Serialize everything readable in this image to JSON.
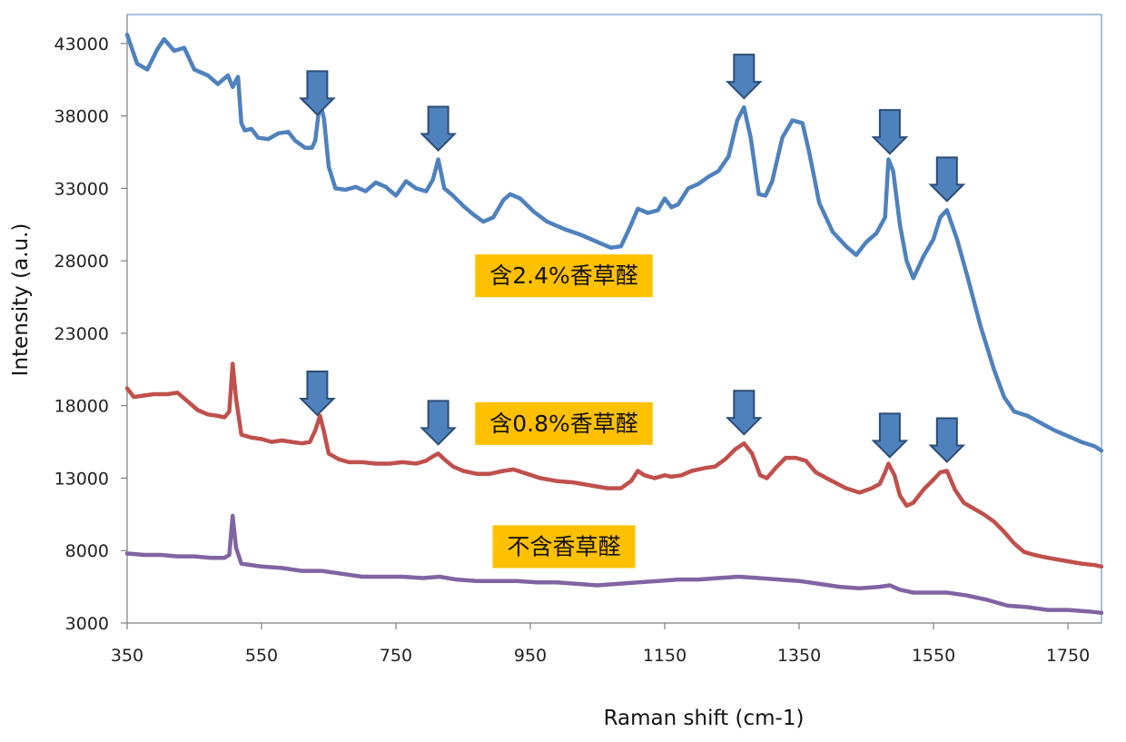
{
  "chart_data": {
    "type": "line",
    "title": "",
    "xlabel": "Raman shift (cm-1)",
    "ylabel": "Intensity (a.u.)",
    "xlim": [
      350,
      1800
    ],
    "ylim": [
      3000,
      45000
    ],
    "x_ticks": [
      350,
      550,
      750,
      950,
      1150,
      1350,
      1550,
      1750
    ],
    "y_ticks": [
      3000,
      8000,
      13000,
      18000,
      23000,
      28000,
      33000,
      38000,
      43000
    ],
    "grid": false,
    "legend": "none",
    "peak_arrows_x": [
      633,
      813,
      1268,
      1485,
      1570
    ],
    "series": [
      {
        "name": "含2.4%香草醛",
        "color": "#4f81bd",
        "points": [
          [
            350,
            43600
          ],
          [
            365,
            41600
          ],
          [
            380,
            41200
          ],
          [
            395,
            42600
          ],
          [
            405,
            43300
          ],
          [
            420,
            42500
          ],
          [
            435,
            42700
          ],
          [
            450,
            41200
          ],
          [
            470,
            40800
          ],
          [
            485,
            40200
          ],
          [
            500,
            40800
          ],
          [
            507,
            40000
          ],
          [
            515,
            40700
          ],
          [
            520,
            37500
          ],
          [
            525,
            37000
          ],
          [
            535,
            37100
          ],
          [
            545,
            36500
          ],
          [
            560,
            36400
          ],
          [
            575,
            36800
          ],
          [
            590,
            36900
          ],
          [
            600,
            36300
          ],
          [
            615,
            35800
          ],
          [
            625,
            35800
          ],
          [
            630,
            36300
          ],
          [
            637,
            39000
          ],
          [
            643,
            37800
          ],
          [
            650,
            34500
          ],
          [
            660,
            33000
          ],
          [
            675,
            32900
          ],
          [
            690,
            33100
          ],
          [
            705,
            32800
          ],
          [
            720,
            33400
          ],
          [
            735,
            33100
          ],
          [
            750,
            32500
          ],
          [
            765,
            33500
          ],
          [
            780,
            33000
          ],
          [
            795,
            32800
          ],
          [
            805,
            33600
          ],
          [
            813,
            35000
          ],
          [
            822,
            33000
          ],
          [
            835,
            32500
          ],
          [
            850,
            31800
          ],
          [
            865,
            31200
          ],
          [
            880,
            30700
          ],
          [
            895,
            31000
          ],
          [
            910,
            32200
          ],
          [
            920,
            32600
          ],
          [
            935,
            32300
          ],
          [
            955,
            31400
          ],
          [
            975,
            30700
          ],
          [
            1000,
            30200
          ],
          [
            1025,
            29800
          ],
          [
            1050,
            29300
          ],
          [
            1070,
            28900
          ],
          [
            1085,
            29000
          ],
          [
            1100,
            30500
          ],
          [
            1110,
            31600
          ],
          [
            1125,
            31300
          ],
          [
            1140,
            31500
          ],
          [
            1150,
            32300
          ],
          [
            1160,
            31700
          ],
          [
            1170,
            31900
          ],
          [
            1185,
            33000
          ],
          [
            1200,
            33300
          ],
          [
            1215,
            33800
          ],
          [
            1230,
            34200
          ],
          [
            1245,
            35200
          ],
          [
            1258,
            37700
          ],
          [
            1268,
            38600
          ],
          [
            1278,
            36500
          ],
          [
            1290,
            32600
          ],
          [
            1300,
            32500
          ],
          [
            1310,
            33500
          ],
          [
            1325,
            36500
          ],
          [
            1340,
            37700
          ],
          [
            1355,
            37500
          ],
          [
            1365,
            35500
          ],
          [
            1380,
            32000
          ],
          [
            1400,
            30000
          ],
          [
            1420,
            29000
          ],
          [
            1435,
            28400
          ],
          [
            1450,
            29300
          ],
          [
            1465,
            29900
          ],
          [
            1478,
            31000
          ],
          [
            1483,
            35000
          ],
          [
            1490,
            34200
          ],
          [
            1500,
            30500
          ],
          [
            1510,
            28000
          ],
          [
            1520,
            26800
          ],
          [
            1535,
            28300
          ],
          [
            1550,
            29500
          ],
          [
            1560,
            31000
          ],
          [
            1570,
            31500
          ],
          [
            1585,
            29500
          ],
          [
            1600,
            27000
          ],
          [
            1620,
            23500
          ],
          [
            1640,
            20500
          ],
          [
            1655,
            18600
          ],
          [
            1670,
            17600
          ],
          [
            1690,
            17300
          ],
          [
            1710,
            16800
          ],
          [
            1730,
            16300
          ],
          [
            1750,
            15900
          ],
          [
            1770,
            15500
          ],
          [
            1790,
            15200
          ],
          [
            1800,
            14900
          ]
        ]
      },
      {
        "name": "含0.8%香草醛",
        "color": "#c0504d",
        "points": [
          [
            350,
            19200
          ],
          [
            360,
            18600
          ],
          [
            375,
            18700
          ],
          [
            390,
            18800
          ],
          [
            410,
            18800
          ],
          [
            425,
            18900
          ],
          [
            440,
            18300
          ],
          [
            455,
            17700
          ],
          [
            470,
            17400
          ],
          [
            485,
            17300
          ],
          [
            495,
            17200
          ],
          [
            502,
            17600
          ],
          [
            507,
            20900
          ],
          [
            512,
            18500
          ],
          [
            520,
            16000
          ],
          [
            535,
            15800
          ],
          [
            550,
            15700
          ],
          [
            565,
            15500
          ],
          [
            580,
            15600
          ],
          [
            595,
            15500
          ],
          [
            610,
            15400
          ],
          [
            622,
            15500
          ],
          [
            630,
            16300
          ],
          [
            637,
            17300
          ],
          [
            643,
            16200
          ],
          [
            650,
            14700
          ],
          [
            665,
            14300
          ],
          [
            680,
            14100
          ],
          [
            700,
            14100
          ],
          [
            720,
            14000
          ],
          [
            740,
            14000
          ],
          [
            760,
            14100
          ],
          [
            780,
            14000
          ],
          [
            795,
            14200
          ],
          [
            805,
            14500
          ],
          [
            813,
            14700
          ],
          [
            822,
            14300
          ],
          [
            835,
            13800
          ],
          [
            850,
            13500
          ],
          [
            870,
            13300
          ],
          [
            890,
            13300
          ],
          [
            910,
            13500
          ],
          [
            925,
            13600
          ],
          [
            945,
            13300
          ],
          [
            965,
            13000
          ],
          [
            990,
            12800
          ],
          [
            1015,
            12700
          ],
          [
            1040,
            12500
          ],
          [
            1065,
            12300
          ],
          [
            1085,
            12300
          ],
          [
            1100,
            12800
          ],
          [
            1110,
            13500
          ],
          [
            1120,
            13200
          ],
          [
            1135,
            13000
          ],
          [
            1150,
            13200
          ],
          [
            1160,
            13100
          ],
          [
            1175,
            13200
          ],
          [
            1190,
            13500
          ],
          [
            1210,
            13700
          ],
          [
            1225,
            13800
          ],
          [
            1240,
            14300
          ],
          [
            1255,
            15000
          ],
          [
            1268,
            15400
          ],
          [
            1280,
            14700
          ],
          [
            1292,
            13200
          ],
          [
            1302,
            13000
          ],
          [
            1315,
            13700
          ],
          [
            1330,
            14400
          ],
          [
            1345,
            14400
          ],
          [
            1360,
            14200
          ],
          [
            1375,
            13400
          ],
          [
            1395,
            12900
          ],
          [
            1420,
            12300
          ],
          [
            1440,
            12000
          ],
          [
            1458,
            12300
          ],
          [
            1470,
            12600
          ],
          [
            1478,
            13400
          ],
          [
            1483,
            14000
          ],
          [
            1492,
            13200
          ],
          [
            1500,
            11800
          ],
          [
            1510,
            11100
          ],
          [
            1520,
            11300
          ],
          [
            1535,
            12200
          ],
          [
            1550,
            12900
          ],
          [
            1560,
            13400
          ],
          [
            1570,
            13500
          ],
          [
            1582,
            12200
          ],
          [
            1595,
            11300
          ],
          [
            1610,
            10900
          ],
          [
            1625,
            10500
          ],
          [
            1640,
            10000
          ],
          [
            1655,
            9300
          ],
          [
            1670,
            8500
          ],
          [
            1685,
            7900
          ],
          [
            1700,
            7700
          ],
          [
            1720,
            7500
          ],
          [
            1745,
            7300
          ],
          [
            1770,
            7100
          ],
          [
            1790,
            7000
          ],
          [
            1800,
            6900
          ]
        ]
      },
      {
        "name": "不含香草醛",
        "color": "#8064a2",
        "points": [
          [
            350,
            7800
          ],
          [
            375,
            7700
          ],
          [
            400,
            7700
          ],
          [
            425,
            7600
          ],
          [
            450,
            7600
          ],
          [
            475,
            7500
          ],
          [
            495,
            7500
          ],
          [
            502,
            7700
          ],
          [
            507,
            10400
          ],
          [
            512,
            8200
          ],
          [
            520,
            7100
          ],
          [
            550,
            6900
          ],
          [
            580,
            6800
          ],
          [
            610,
            6600
          ],
          [
            640,
            6600
          ],
          [
            670,
            6400
          ],
          [
            700,
            6200
          ],
          [
            730,
            6200
          ],
          [
            760,
            6200
          ],
          [
            790,
            6100
          ],
          [
            815,
            6200
          ],
          [
            840,
            6000
          ],
          [
            870,
            5900
          ],
          [
            900,
            5900
          ],
          [
            930,
            5900
          ],
          [
            960,
            5800
          ],
          [
            990,
            5800
          ],
          [
            1020,
            5700
          ],
          [
            1050,
            5600
          ],
          [
            1080,
            5700
          ],
          [
            1110,
            5800
          ],
          [
            1140,
            5900
          ],
          [
            1170,
            6000
          ],
          [
            1200,
            6000
          ],
          [
            1230,
            6100
          ],
          [
            1260,
            6200
          ],
          [
            1290,
            6100
          ],
          [
            1320,
            6000
          ],
          [
            1350,
            5900
          ],
          [
            1380,
            5700
          ],
          [
            1410,
            5500
          ],
          [
            1440,
            5400
          ],
          [
            1470,
            5500
          ],
          [
            1485,
            5600
          ],
          [
            1500,
            5300
          ],
          [
            1520,
            5100
          ],
          [
            1540,
            5100
          ],
          [
            1570,
            5100
          ],
          [
            1600,
            4900
          ],
          [
            1630,
            4600
          ],
          [
            1660,
            4200
          ],
          [
            1690,
            4100
          ],
          [
            1720,
            3900
          ],
          [
            1750,
            3900
          ],
          [
            1780,
            3800
          ],
          [
            1800,
            3700
          ]
        ]
      }
    ],
    "annotations": [
      {
        "text": "含2.4%香草醛",
        "x": 1000,
        "y": 27000,
        "bg": "#ffc000"
      },
      {
        "text": "含0.8%香草醛",
        "x": 1000,
        "y": 16800,
        "bg": "#ffc000"
      },
      {
        "text": "不含香草醛",
        "x": 1000,
        "y": 8300,
        "bg": "#ffc000"
      }
    ]
  }
}
